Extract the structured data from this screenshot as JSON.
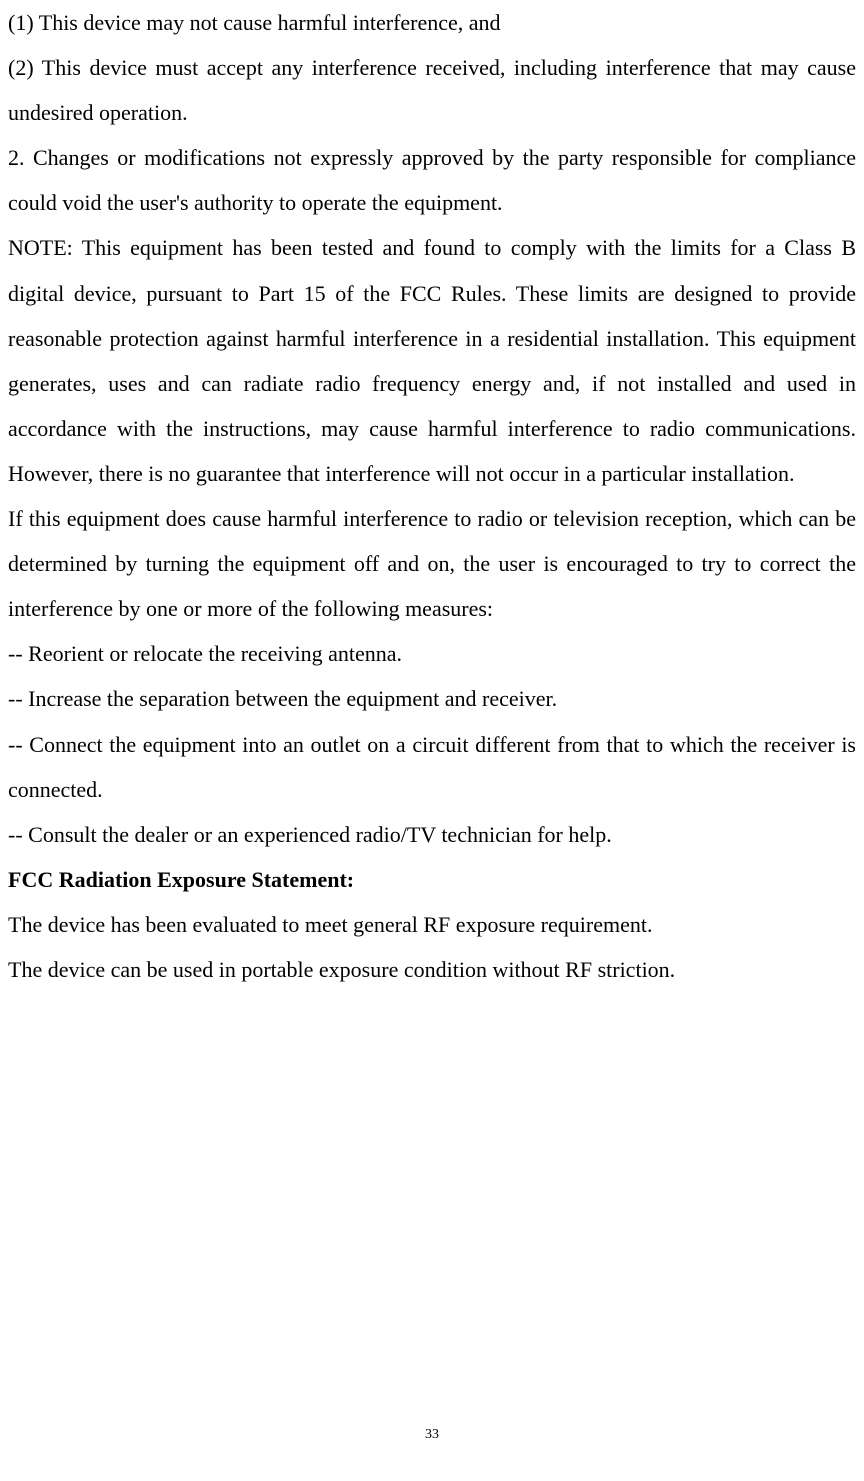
{
  "document": {
    "paragraphs": [
      "(1) This device may not cause harmful interference, and",
      "(2) This device must accept any interference received, including interference that may cause undesired operation.",
      "2. Changes or modifications not expressly approved by the party responsible for compliance could void the user's authority to operate the equipment.",
      "NOTE: This equipment has been tested and found to comply with the limits for a Class B digital device, pursuant to Part 15 of the FCC Rules. These limits are designed to provide reasonable protection against harmful interference in a residential installation. This equipment generates, uses and can radiate radio frequency energy and, if not installed and used in accordance with the instructions, may cause harmful interference to radio communications. However, there is no guarantee that interference will not occur in a particular installation.",
      "If this equipment does cause harmful interference to radio or television reception, which can be determined by turning the equipment off and on, the user is encouraged to try to correct the interference by one or more of the following measures:",
      "-- Reorient or relocate the receiving antenna.",
      "-- Increase the separation between the equipment and receiver.",
      "-- Connect the equipment into an outlet on a circuit different from that to which the receiver is connected.",
      "-- Consult the dealer or an experienced radio/TV technician for help."
    ],
    "bold_heading": "FCC Radiation Exposure Statement:",
    "closing_paragraphs": [
      "The device has been evaluated to meet general RF exposure requirement.",
      "The device can be used in portable exposure condition without RF striction."
    ],
    "page_number": "33",
    "styling": {
      "font_family": "Times New Roman",
      "body_font_size": 22,
      "page_number_font_size": 14,
      "text_color": "#000000",
      "background_color": "#ffffff",
      "line_height": 2.05,
      "text_align": "justify"
    }
  }
}
